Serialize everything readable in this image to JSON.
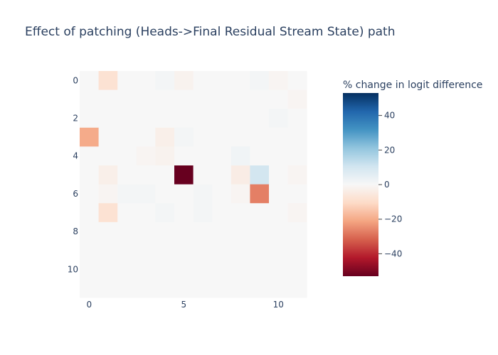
{
  "chart_data": {
    "type": "heatmap",
    "title": "Effect of patching (Heads->Final Residual Stream State) path",
    "xlabel": "",
    "ylabel": "",
    "x_ticks": [
      0,
      5,
      10
    ],
    "y_ticks": [
      0,
      2,
      4,
      6,
      8,
      10
    ],
    "rows": 12,
    "cols": 12,
    "colorbar": {
      "title": "% change in logit difference",
      "range": [
        -53,
        53
      ],
      "ticks": [
        40,
        20,
        0,
        -20,
        -40
      ],
      "tick_labels": [
        "40",
        "20",
        "0",
        "−20",
        "−40"
      ],
      "colorscale": "RdBu"
    },
    "values": [
      [
        0,
        -8,
        0,
        0,
        1,
        -2,
        0,
        0,
        0,
        1,
        -1,
        0
      ],
      [
        0,
        0,
        0,
        0,
        0,
        0,
        0,
        0,
        0,
        0,
        0,
        -1
      ],
      [
        0,
        0,
        0,
        0,
        0,
        0,
        0,
        0,
        0,
        0,
        1,
        0
      ],
      [
        -20,
        0,
        0,
        0,
        -3,
        1,
        0,
        0,
        0,
        0,
        0,
        0
      ],
      [
        0,
        0,
        0,
        -1,
        -2,
        0,
        0,
        0,
        2,
        0,
        0,
        0
      ],
      [
        0,
        -3,
        0,
        0,
        0,
        -53,
        0,
        0,
        -4,
        10,
        0,
        -1
      ],
      [
        0,
        -1,
        1,
        1,
        0,
        0,
        1,
        0,
        -1,
        -27,
        0,
        0
      ],
      [
        0,
        -8,
        0,
        0,
        1,
        0,
        1,
        0,
        0,
        0,
        0,
        -1
      ],
      [
        0,
        0,
        0,
        0,
        0,
        0,
        0,
        0,
        0,
        0,
        0,
        0
      ],
      [
        0,
        0,
        0,
        0,
        0,
        0,
        0,
        0,
        0,
        0,
        0,
        0
      ],
      [
        0,
        0,
        0,
        0,
        0,
        0,
        0,
        0,
        0,
        0,
        0,
        0
      ],
      [
        0,
        0,
        0,
        0,
        0,
        0,
        0,
        0,
        0,
        0,
        0,
        0
      ]
    ]
  }
}
